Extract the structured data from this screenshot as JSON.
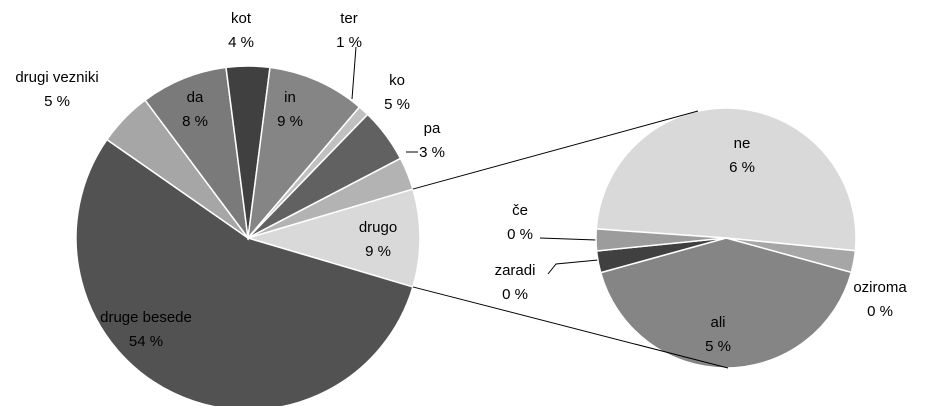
{
  "chart_data": [
    {
      "type": "pie",
      "categories": [
        "drugo",
        "druge besede",
        "drugi vezniki",
        "da",
        "kot",
        "in",
        "ter",
        "ko",
        "pa"
      ],
      "values": [
        9,
        54,
        5,
        8,
        4,
        9,
        1,
        5,
        3
      ],
      "value_labels": [
        "9 %",
        "54 %",
        "5 %",
        "8 %",
        "4 %",
        "9 %",
        "1 %",
        "5 %",
        "3 %"
      ],
      "colors": [
        "#d9d9d9",
        "#525252",
        "#a6a6a6",
        "#7a7a7a",
        "#404040",
        "#858585",
        "#c0c0c0",
        "#616161",
        "#b3b3b3"
      ]
    },
    {
      "type": "pie",
      "categories": [
        "ne",
        "oziroma",
        "ali",
        "zaradi",
        "če"
      ],
      "values": [
        5.6,
        0.3,
        4.6,
        0.3,
        0.3
      ],
      "value_labels": [
        "6 %",
        "0 %",
        "5 %",
        "0 %",
        "0 %"
      ],
      "colors": [
        "#d9d9d9",
        "#a6a6a6",
        "#858585",
        "#404040",
        "#9c9c9c"
      ]
    }
  ]
}
